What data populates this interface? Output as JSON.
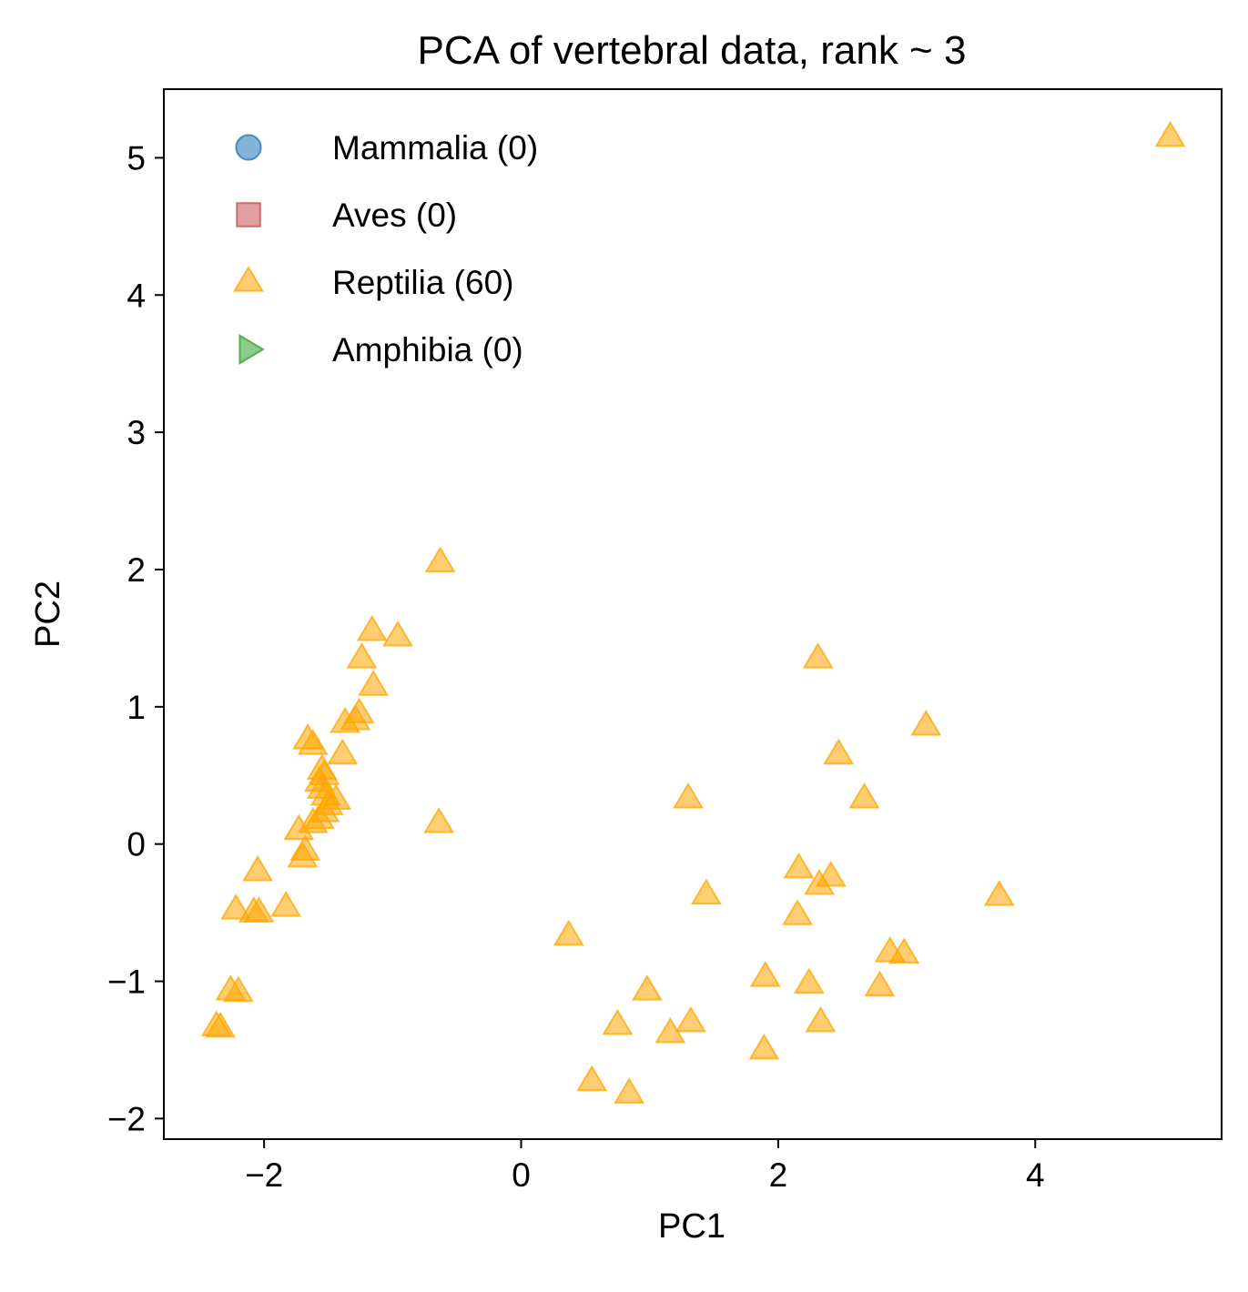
{
  "chart_data": {
    "type": "scatter",
    "title": "PCA of vertebral data, rank ~ 3",
    "xlabel": "PC1",
    "ylabel": "PC2",
    "xlim": [
      -2.78,
      5.45
    ],
    "ylim": [
      -2.15,
      5.5
    ],
    "xticks": [
      -2,
      0,
      2,
      4
    ],
    "yticks": [
      -2,
      -1,
      0,
      1,
      2,
      3,
      4,
      5
    ],
    "xtick_labels": [
      "−2",
      "0",
      "2",
      "4"
    ],
    "ytick_labels": [
      "−2",
      "−1",
      "0",
      "1",
      "2",
      "3",
      "4",
      "5"
    ],
    "grid": false,
    "legend_position": "top-left",
    "series": [
      {
        "name": "Mammalia (0)",
        "marker": "circle",
        "color": "#1f77b4",
        "points": []
      },
      {
        "name": "Aves (0)",
        "marker": "square",
        "color": "#c44e52",
        "points": []
      },
      {
        "name": "Reptilia (60)",
        "marker": "triangle-up",
        "color": "#ffa500",
        "points": [
          [
            5.05,
            5.15
          ],
          [
            -0.63,
            2.05
          ],
          [
            -1.16,
            1.55
          ],
          [
            -0.96,
            1.51
          ],
          [
            -1.24,
            1.35
          ],
          [
            -1.15,
            1.15
          ],
          [
            -1.26,
            0.95
          ],
          [
            -1.29,
            0.9
          ],
          [
            -1.37,
            0.88
          ],
          [
            -1.66,
            0.76
          ],
          [
            -1.62,
            0.72
          ],
          [
            -1.39,
            0.65
          ],
          [
            -1.55,
            0.54
          ],
          [
            -1.53,
            0.5
          ],
          [
            -1.57,
            0.45
          ],
          [
            -1.55,
            0.4
          ],
          [
            -1.52,
            0.35
          ],
          [
            -1.44,
            0.32
          ],
          [
            -1.5,
            0.28
          ],
          [
            -1.53,
            0.23
          ],
          [
            -1.57,
            0.18
          ],
          [
            -1.62,
            0.15
          ],
          [
            -0.64,
            0.15
          ],
          [
            -1.73,
            0.1
          ],
          [
            -1.68,
            -0.05
          ],
          [
            -1.7,
            -0.1
          ],
          [
            -2.05,
            -0.2
          ],
          [
            -1.83,
            -0.46
          ],
          [
            -2.22,
            -0.48
          ],
          [
            -2.08,
            -0.5
          ],
          [
            -2.04,
            -0.5
          ],
          [
            -2.26,
            -1.07
          ],
          [
            -2.2,
            -1.08
          ],
          [
            -2.37,
            -1.33
          ],
          [
            -2.34,
            -1.34
          ],
          [
            2.31,
            1.35
          ],
          [
            3.15,
            0.86
          ],
          [
            2.47,
            0.65
          ],
          [
            2.67,
            0.33
          ],
          [
            1.3,
            0.33
          ],
          [
            2.16,
            -0.18
          ],
          [
            2.41,
            -0.24
          ],
          [
            2.32,
            -0.3
          ],
          [
            1.44,
            -0.37
          ],
          [
            3.72,
            -0.38
          ],
          [
            2.15,
            -0.52
          ],
          [
            0.37,
            -0.67
          ],
          [
            2.87,
            -0.79
          ],
          [
            2.98,
            -0.8
          ],
          [
            1.9,
            -0.97
          ],
          [
            2.24,
            -1.02
          ],
          [
            2.79,
            -1.04
          ],
          [
            0.98,
            -1.07
          ],
          [
            1.32,
            -1.3
          ],
          [
            2.33,
            -1.3
          ],
          [
            0.75,
            -1.32
          ],
          [
            1.16,
            -1.38
          ],
          [
            1.89,
            -1.5
          ],
          [
            0.55,
            -1.73
          ],
          [
            0.84,
            -1.82
          ]
        ]
      },
      {
        "name": "Amphibia (0)",
        "marker": "triangle-right",
        "color": "#2ca02c",
        "points": []
      }
    ]
  }
}
